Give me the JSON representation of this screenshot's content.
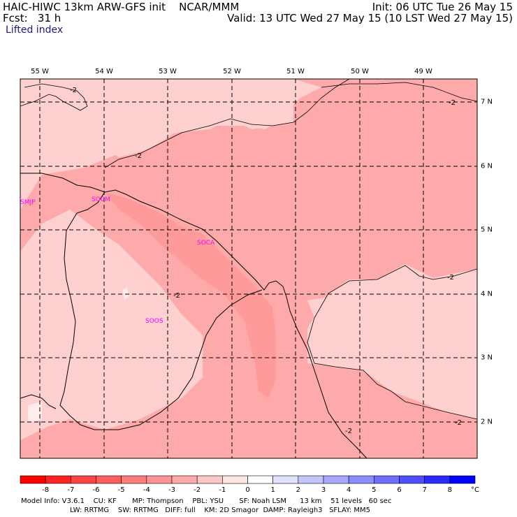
{
  "header": {
    "left_line1": "HAIC-HIWC 13km ARW-GFS init    NCAR/MMM",
    "left_line2": "Fcst:   31 h",
    "left_line3": "Lifted index",
    "right_line1": "Init: 06 UTC Tue 26 May 15",
    "right_line2": "Valid: 13 UTC Wed 27 May 15 (10 LST Wed 27 May 15)"
  },
  "map": {
    "lon_labels": [
      "55 W",
      "54 W",
      "53 W",
      "52 W",
      "51 W",
      "50 W",
      "49 W"
    ],
    "lat_labels": [
      "7 N",
      "6 N",
      "5 N",
      "4 N",
      "3 N",
      "2 N"
    ],
    "stations": [
      "SMJP",
      "SOCM",
      "SOCA",
      "SOOS"
    ],
    "contour_label": "-2"
  },
  "colorbar": {
    "labels": [
      "-8",
      "-7",
      "-6",
      "-5",
      "-4",
      "-3",
      "-2",
      "-1",
      "0",
      "1",
      "2",
      "3",
      "4",
      "5",
      "6",
      "7",
      "8"
    ],
    "unit": "°C",
    "colors": [
      "#ff0000",
      "#ff2222",
      "#ff4444",
      "#ff5f5f",
      "#ff7a7a",
      "#ff9494",
      "#ffaaaa",
      "#ffc8c8",
      "#ffe4e4",
      "#ffffff",
      "#e0e0ff",
      "#c4c4ff",
      "#a8a8ff",
      "#8c8cff",
      "#6e6eff",
      "#4e4eff",
      "#2a2aff",
      "#0000ff"
    ]
  },
  "footer": {
    "line1": "Model Info: V3.6.1    CU: KF       MP: Thompson    PBL: YSU       SF: Noah LSM      13 km    51 levels   60 sec",
    "line2": "LW: RRTMG    SW: RRTMG   DIFF: full    KM: 2D Smagor  DAMP: Rayleigh3   SFLAY: MM5"
  }
}
